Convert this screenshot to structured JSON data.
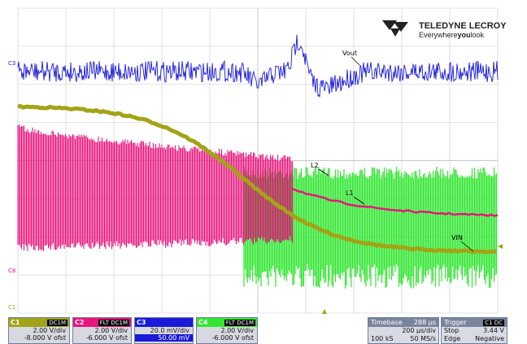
{
  "brand": {
    "name": "TELEDYNE LECROY",
    "tagline_pre": "Everywhere",
    "tagline_bold": "you",
    "tagline_post": "look"
  },
  "colors": {
    "c1_trace": "#a3a317",
    "c2_trace": "#e8157c",
    "c3_trace": "#1a1ad8",
    "c4_trace": "#33e633",
    "grid": "#c8c8c8"
  },
  "annotations": {
    "vout": "Vout",
    "l1": "L1",
    "l2": "L2",
    "vin": "VIN"
  },
  "markers": {
    "c3": "C3",
    "c2": "C8",
    "c1": "C1"
  },
  "channels": [
    {
      "id": "C1",
      "coupling": "DC1M",
      "vdiv": "2.00 V/div",
      "offset": "-8.000 V ofst"
    },
    {
      "id": "C2",
      "coupling": "FLT DC1M",
      "vdiv": "2.00 V/div",
      "offset": "-6.000 V ofst"
    },
    {
      "id": "C3",
      "coupling": "",
      "vdiv": "20.0 mV/div",
      "offset": "50.00 mV"
    },
    {
      "id": "C4",
      "coupling": "FLT DC1M",
      "vdiv": "2.00 V/div",
      "offset": "-6.000 V ofst"
    }
  ],
  "timebase": {
    "label": "Timebase",
    "value": "288 µs",
    "per_div": "200 µs/div",
    "samples": "100 kS",
    "rate": "50 MS/s"
  },
  "trigger": {
    "label": "Trigger",
    "source": "C1 DC",
    "mode": "Stop",
    "level": "3.44 V",
    "type": "Edge",
    "slope": "Negative"
  }
}
